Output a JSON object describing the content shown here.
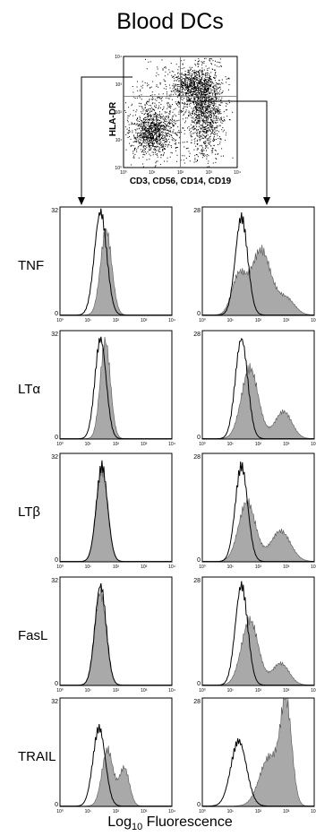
{
  "figure": {
    "title": "Blood DCs",
    "dotplot": {
      "ylabel": "HLA-DR",
      "xlabel": "CD3, CD56, CD14, CD19",
      "ticks": [
        "10⁰",
        "10¹",
        "10²",
        "10³",
        "10⁴"
      ]
    },
    "xlabel_main": "Log",
    "xlabel_sub": "10",
    "xlabel_rest": " Fluorescence",
    "hist_ticks": [
      "10⁰",
      "10¹",
      "10²",
      "10³",
      "10⁴"
    ]
  },
  "chart_data": {
    "type": "area",
    "rows": [
      "TNF",
      "LTα",
      "LTβ",
      "FasL",
      "TRAIL"
    ],
    "left_column": {
      "ymax": [
        32,
        32,
        32,
        32,
        32
      ],
      "xlim": [
        0,
        4
      ],
      "panels": [
        {
          "control_peaks": [
            {
              "mu": 1.45,
              "s": 0.22,
              "h": 0.95
            }
          ],
          "stain_peaks": [
            {
              "mu": 1.65,
              "s": 0.2,
              "h": 0.78
            }
          ]
        },
        {
          "control_peaks": [
            {
              "mu": 1.45,
              "s": 0.2,
              "h": 0.92
            }
          ],
          "stain_peaks": [
            {
              "mu": 1.62,
              "s": 0.18,
              "h": 0.9
            }
          ]
        },
        {
          "control_peaks": [
            {
              "mu": 1.5,
              "s": 0.2,
              "h": 0.88
            }
          ],
          "stain_peaks": [
            {
              "mu": 1.5,
              "s": 0.2,
              "h": 0.85
            }
          ]
        },
        {
          "control_peaks": [
            {
              "mu": 1.45,
              "s": 0.2,
              "h": 0.92
            }
          ],
          "stain_peaks": [
            {
              "mu": 1.45,
              "s": 0.2,
              "h": 0.86
            }
          ]
        },
        {
          "control_peaks": [
            {
              "mu": 1.4,
              "s": 0.22,
              "h": 0.72
            }
          ],
          "stain_peaks": [
            {
              "mu": 1.7,
              "s": 0.2,
              "h": 0.52
            },
            {
              "mu": 2.3,
              "s": 0.18,
              "h": 0.35
            }
          ]
        }
      ]
    },
    "right_column": {
      "ymax": [
        28,
        28,
        28,
        28,
        28
      ],
      "xlim": [
        0,
        4
      ],
      "panels": [
        {
          "control_peaks": [
            {
              "mu": 1.4,
              "s": 0.22,
              "h": 0.9
            }
          ],
          "stain_peaks": [
            {
              "mu": 1.3,
              "s": 0.25,
              "h": 0.35
            },
            {
              "mu": 2.1,
              "s": 0.35,
              "h": 0.6
            },
            {
              "mu": 3.0,
              "s": 0.3,
              "h": 0.15
            }
          ]
        },
        {
          "control_peaks": [
            {
              "mu": 1.4,
              "s": 0.22,
              "h": 0.92
            }
          ],
          "stain_peaks": [
            {
              "mu": 1.7,
              "s": 0.3,
              "h": 0.65
            },
            {
              "mu": 2.9,
              "s": 0.3,
              "h": 0.25
            }
          ]
        },
        {
          "control_peaks": [
            {
              "mu": 1.4,
              "s": 0.22,
              "h": 0.88
            }
          ],
          "stain_peaks": [
            {
              "mu": 1.6,
              "s": 0.3,
              "h": 0.55
            },
            {
              "mu": 2.8,
              "s": 0.35,
              "h": 0.28
            }
          ]
        },
        {
          "control_peaks": [
            {
              "mu": 1.4,
              "s": 0.22,
              "h": 0.92
            }
          ],
          "stain_peaks": [
            {
              "mu": 1.7,
              "s": 0.3,
              "h": 0.6
            },
            {
              "mu": 2.8,
              "s": 0.3,
              "h": 0.2
            }
          ]
        },
        {
          "control_peaks": [
            {
              "mu": 1.3,
              "s": 0.28,
              "h": 0.6
            }
          ],
          "stain_peaks": [
            {
              "mu": 2.4,
              "s": 0.35,
              "h": 0.45
            },
            {
              "mu": 3.0,
              "s": 0.2,
              "h": 0.9
            }
          ]
        }
      ]
    },
    "colors": {
      "stain_fill": "#a9a9a9",
      "control_line": "#000000"
    }
  }
}
